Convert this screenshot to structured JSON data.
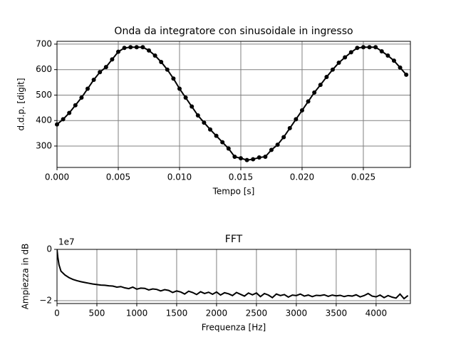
{
  "chart_data": [
    {
      "type": "line",
      "title": "Onda da integratore con sinusoidale in ingresso",
      "xlabel": "Tempo [s]",
      "ylabel": "d.d.p. [digit]",
      "color": "#000000",
      "marker": true,
      "grid": true,
      "x": [
        0,
        0.0005,
        0.001,
        0.0015,
        0.002,
        0.0025,
        0.003,
        0.0035,
        0.004,
        0.0045,
        0.005,
        0.0055,
        0.006,
        0.0065,
        0.007,
        0.0075,
        0.008,
        0.0085,
        0.009,
        0.0095,
        0.01,
        0.0105,
        0.011,
        0.0115,
        0.012,
        0.0125,
        0.013,
        0.0135,
        0.014,
        0.0145,
        0.015,
        0.0155,
        0.016,
        0.0165,
        0.017,
        0.0175,
        0.018,
        0.0185,
        0.019,
        0.0195,
        0.02,
        0.0205,
        0.021,
        0.0215,
        0.022,
        0.0225,
        0.023,
        0.0235,
        0.024,
        0.0245,
        0.025,
        0.0255,
        0.026,
        0.0265,
        0.027,
        0.0275,
        0.028,
        0.0285
      ],
      "values": [
        385,
        405,
        430,
        460,
        490,
        525,
        560,
        590,
        610,
        640,
        670,
        685,
        688,
        688,
        688,
        675,
        655,
        630,
        600,
        565,
        525,
        490,
        455,
        420,
        392,
        365,
        340,
        315,
        290,
        258,
        252,
        245,
        248,
        255,
        258,
        285,
        305,
        335,
        370,
        405,
        440,
        475,
        510,
        540,
        571,
        600,
        627,
        648,
        668,
        685,
        688,
        688,
        688,
        672,
        655,
        635,
        608,
        580
      ],
      "xlim": [
        0,
        0.02884
      ],
      "ylim": [
        216,
        711
      ],
      "xticks": [
        {
          "value": 0,
          "label": "0.000"
        },
        {
          "value": 0.005,
          "label": "0.005"
        },
        {
          "value": 0.01,
          "label": "0.010"
        },
        {
          "value": 0.015,
          "label": "0.015"
        },
        {
          "value": 0.02,
          "label": "0.020"
        },
        {
          "value": 0.025,
          "label": "0.025"
        }
      ],
      "yticks": [
        300,
        400,
        500,
        600,
        700
      ]
    },
    {
      "type": "line",
      "title": "FFT",
      "xlabel": "Frequenza [Hz]",
      "ylabel": "Ampiezza in dB",
      "y_offset_label": "1e7",
      "color": "#000000",
      "marker": false,
      "grid": true,
      "x": [
        0,
        10,
        25,
        50,
        100,
        150,
        200,
        250,
        300,
        350,
        400,
        450,
        500,
        550,
        600,
        650,
        700,
        750,
        800,
        850,
        900,
        950,
        1000,
        1050,
        1100,
        1150,
        1200,
        1250,
        1300,
        1350,
        1400,
        1450,
        1500,
        1550,
        1600,
        1650,
        1700,
        1750,
        1800,
        1850,
        1900,
        1950,
        2000,
        2050,
        2100,
        2150,
        2200,
        2250,
        2300,
        2350,
        2400,
        2450,
        2500,
        2550,
        2600,
        2650,
        2700,
        2750,
        2800,
        2850,
        2900,
        2950,
        3000,
        3050,
        3100,
        3150,
        3200,
        3250,
        3300,
        3350,
        3400,
        3450,
        3500,
        3550,
        3600,
        3650,
        3700,
        3750,
        3800,
        3850,
        3900,
        3950,
        4000,
        4050,
        4100,
        4150,
        4200,
        4250,
        4300,
        4350,
        4400
      ],
      "values": [
        0,
        -0.3,
        -0.6,
        -0.85,
        -1.0,
        -1.1,
        -1.17,
        -1.22,
        -1.26,
        -1.29,
        -1.32,
        -1.35,
        -1.37,
        -1.39,
        -1.4,
        -1.42,
        -1.43,
        -1.47,
        -1.45,
        -1.5,
        -1.53,
        -1.47,
        -1.55,
        -1.51,
        -1.52,
        -1.58,
        -1.54,
        -1.56,
        -1.62,
        -1.57,
        -1.6,
        -1.68,
        -1.62,
        -1.66,
        -1.74,
        -1.63,
        -1.68,
        -1.76,
        -1.65,
        -1.72,
        -1.67,
        -1.75,
        -1.66,
        -1.78,
        -1.69,
        -1.73,
        -1.8,
        -1.68,
        -1.75,
        -1.82,
        -1.7,
        -1.77,
        -1.7,
        -1.84,
        -1.72,
        -1.78,
        -1.88,
        -1.74,
        -1.8,
        -1.76,
        -1.86,
        -1.78,
        -1.8,
        -1.74,
        -1.82,
        -1.78,
        -1.84,
        -1.79,
        -1.8,
        -1.77,
        -1.83,
        -1.78,
        -1.81,
        -1.79,
        -1.84,
        -1.8,
        -1.82,
        -1.77,
        -1.85,
        -1.8,
        -1.72,
        -1.82,
        -1.85,
        -1.78,
        -1.88,
        -1.8,
        -1.86,
        -1.9,
        -1.74,
        -1.92,
        -1.8
      ],
      "xlim": [
        0,
        4430
      ],
      "ylim": [
        -2.11,
        0
      ],
      "xticks": [
        0,
        500,
        1000,
        1500,
        2000,
        2500,
        3000,
        3500,
        4000
      ],
      "yticks": [
        {
          "value": -2,
          "label": "−2"
        },
        0
      ]
    }
  ]
}
